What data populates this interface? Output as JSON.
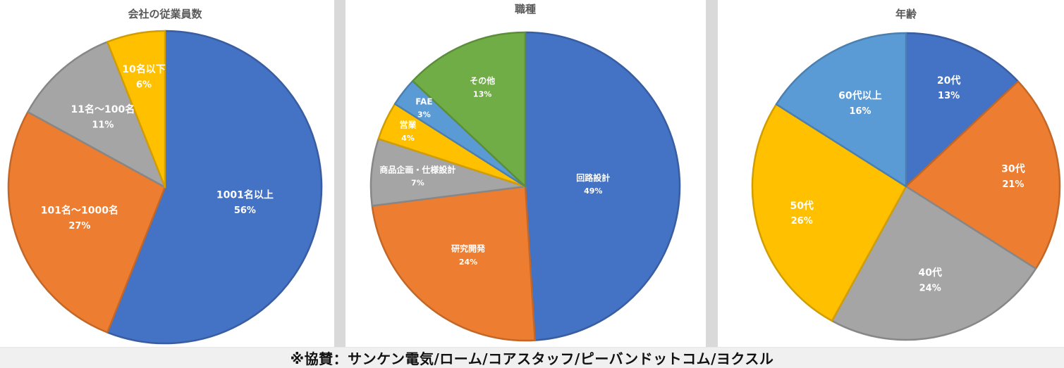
{
  "chart_data": [
    {
      "type": "pie",
      "title": "会社の従業員数",
      "slices": [
        {
          "label": "1001名以上",
          "value": 56,
          "pct_label": "56%",
          "color": "#4472c4"
        },
        {
          "label": "101名～1000名",
          "value": 27,
          "pct_label": "27%",
          "color": "#ed7d31"
        },
        {
          "label": "11名～100名",
          "value": 11,
          "pct_label": "11%",
          "color": "#a5a5a5"
        },
        {
          "label": "10名以下",
          "value": 6,
          "pct_label": "6%",
          "color": "#ffc000"
        }
      ]
    },
    {
      "type": "pie",
      "title": "職種",
      "slices": [
        {
          "label": "回路設計",
          "value": 49,
          "pct_label": "49%",
          "color": "#4472c4"
        },
        {
          "label": "研究開発",
          "value": 24,
          "pct_label": "24%",
          "color": "#ed7d31"
        },
        {
          "label": "商品企画・仕様設計",
          "value": 7,
          "pct_label": "7%",
          "color": "#a5a5a5"
        },
        {
          "label": "営業",
          "value": 4,
          "pct_label": "4%",
          "color": "#ffc000"
        },
        {
          "label": "FAE",
          "value": 3,
          "pct_label": "3%",
          "color": "#5b9bd5"
        },
        {
          "label": "その他",
          "value": 13,
          "pct_label": "13%",
          "color": "#70ad47"
        }
      ]
    },
    {
      "type": "pie",
      "title": "年齢",
      "slices": [
        {
          "label": "20代",
          "value": 13,
          "pct_label": "13%",
          "color": "#4472c4"
        },
        {
          "label": "30代",
          "value": 21,
          "pct_label": "21%",
          "color": "#ed7d31"
        },
        {
          "label": "40代",
          "value": 24,
          "pct_label": "24%",
          "color": "#a5a5a5"
        },
        {
          "label": "50代",
          "value": 26,
          "pct_label": "26%",
          "color": "#ffc000"
        },
        {
          "label": "60代以上",
          "value": 16,
          "pct_label": "16%",
          "color": "#5b9bd5"
        }
      ]
    }
  ],
  "footer": {
    "text": "※協賛：サンケン電気/ローム/コアスタッフ/ピーバンドットコム/ヨクスル"
  }
}
